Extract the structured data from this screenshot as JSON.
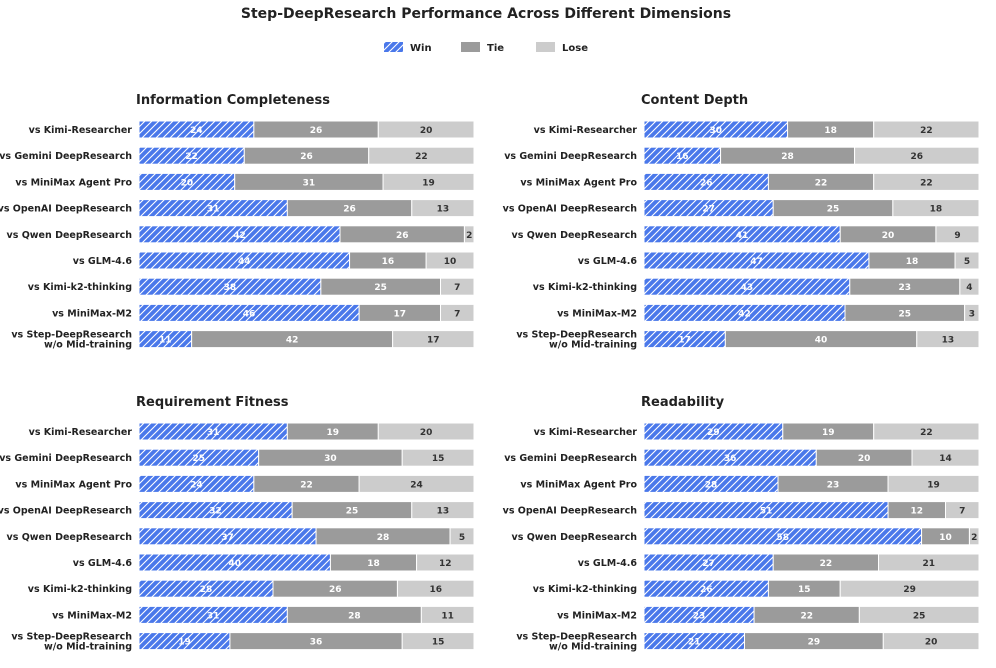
{
  "title": "Step-DeepResearch Performance Across Different Dimensions",
  "legend": {
    "placement": "top-center",
    "items": [
      {
        "key": "win",
        "label": "Win"
      },
      {
        "key": "tie",
        "label": "Tie"
      },
      {
        "key": "lose",
        "label": "Lose"
      }
    ]
  },
  "colors": {
    "win": "#4a78ea",
    "win_hatch": "#ffffff",
    "tie": "#9b9b9b",
    "lose": "#cccccc",
    "win_label": "#ffffff",
    "tie_label": "#ffffff",
    "lose_label": "#333333",
    "text": "#222222"
  },
  "categories": [
    [
      "vs Kimi-Researcher"
    ],
    [
      "vs Gemini DeepResearch"
    ],
    [
      "vs MiniMax Agent Pro"
    ],
    [
      "vs OpenAI DeepResearch"
    ],
    [
      "vs Qwen DeepResearch"
    ],
    [
      "vs GLM-4.6"
    ],
    [
      "vs Kimi-k2-thinking"
    ],
    [
      "vs MiniMax-M2"
    ],
    [
      "vs Step-DeepResearch",
      "w/o Mid-training"
    ]
  ],
  "chart_data": [
    {
      "type": "bar",
      "orientation": "horizontal-stacked-100",
      "title": "Information Completeness",
      "series": [
        {
          "name": "Win",
          "values": [
            24,
            22,
            20,
            31,
            42,
            44,
            38,
            46,
            11
          ]
        },
        {
          "name": "Tie",
          "values": [
            26,
            26,
            31,
            26,
            26,
            16,
            25,
            17,
            42
          ]
        },
        {
          "name": "Lose",
          "values": [
            20,
            22,
            19,
            13,
            2,
            10,
            7,
            7,
            17
          ]
        }
      ]
    },
    {
      "type": "bar",
      "orientation": "horizontal-stacked-100",
      "title": "Content Depth",
      "series": [
        {
          "name": "Win",
          "values": [
            30,
            16,
            26,
            27,
            41,
            47,
            43,
            42,
            17
          ]
        },
        {
          "name": "Tie",
          "values": [
            18,
            28,
            22,
            25,
            20,
            18,
            23,
            25,
            40
          ]
        },
        {
          "name": "Lose",
          "values": [
            22,
            26,
            22,
            18,
            9,
            5,
            4,
            3,
            13
          ]
        }
      ]
    },
    {
      "type": "bar",
      "orientation": "horizontal-stacked-100",
      "title": "Requirement Fitness",
      "series": [
        {
          "name": "Win",
          "values": [
            31,
            25,
            24,
            32,
            37,
            40,
            28,
            31,
            19
          ]
        },
        {
          "name": "Tie",
          "values": [
            19,
            30,
            22,
            25,
            28,
            18,
            26,
            28,
            36
          ]
        },
        {
          "name": "Lose",
          "values": [
            20,
            15,
            24,
            13,
            5,
            12,
            16,
            11,
            15
          ]
        }
      ]
    },
    {
      "type": "bar",
      "orientation": "horizontal-stacked-100",
      "title": "Readability",
      "series": [
        {
          "name": "Win",
          "values": [
            29,
            36,
            28,
            51,
            58,
            27,
            26,
            23,
            21
          ]
        },
        {
          "name": "Tie",
          "values": [
            19,
            20,
            23,
            12,
            10,
            22,
            15,
            22,
            29
          ]
        },
        {
          "name": "Lose",
          "values": [
            22,
            14,
            19,
            7,
            2,
            21,
            29,
            25,
            20
          ]
        }
      ]
    }
  ]
}
